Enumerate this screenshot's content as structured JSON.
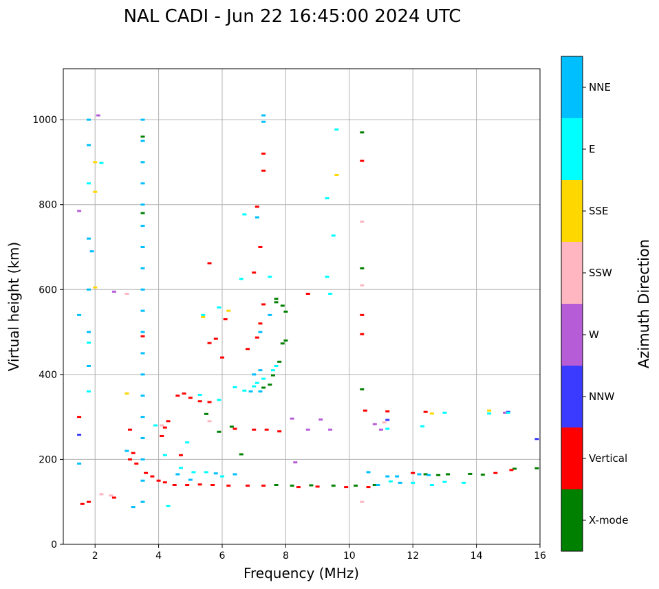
{
  "chart_data": {
    "type": "scatter",
    "title": "NAL CADI - Jun 22 16:45:00 2024 UTC",
    "xlabel": "Frequency (MHz)",
    "ylabel": "Virtual height (km)",
    "xlim": [
      1,
      16
    ],
    "ylim": [
      0,
      1120
    ],
    "xticks": [
      2,
      4,
      6,
      8,
      10,
      12,
      14,
      16
    ],
    "yticks": [
      0,
      200,
      400,
      600,
      800,
      1000
    ],
    "grid": true,
    "colorbar": {
      "label": "Azimuth Direction",
      "entries": [
        {
          "name": "X-mode",
          "color": "#008000"
        },
        {
          "name": "Vertical",
          "color": "#ff0000"
        },
        {
          "name": "NNW",
          "color": "#3b3bff"
        },
        {
          "name": "W",
          "color": "#b65cd6"
        },
        {
          "name": "SSW",
          "color": "#ffb6c1"
        },
        {
          "name": "SSE",
          "color": "#ffd700"
        },
        {
          "name": "E",
          "color": "#00ffff"
        },
        {
          "name": "NNE",
          "color": "#00bfff"
        }
      ]
    },
    "series": [
      {
        "name": "X-mode",
        "points": [
          [
            7.7,
            140
          ],
          [
            8.2,
            138
          ],
          [
            8.8,
            139
          ],
          [
            9.5,
            138
          ],
          [
            10.2,
            138
          ],
          [
            10.8,
            140
          ],
          [
            12.4,
            165
          ],
          [
            12.8,
            163
          ],
          [
            13.1,
            165
          ],
          [
            13.8,
            166
          ],
          [
            14.2,
            164
          ],
          [
            15.2,
            178
          ],
          [
            15.9,
            179
          ],
          [
            7.3,
            369
          ],
          [
            7.5,
            376
          ],
          [
            7.6,
            398
          ],
          [
            7.8,
            430
          ],
          [
            7.9,
            473
          ],
          [
            8.0,
            480
          ],
          [
            8.0,
            548
          ],
          [
            7.9,
            562
          ],
          [
            7.7,
            570
          ],
          [
            7.7,
            578
          ],
          [
            10.4,
            365
          ],
          [
            10.4,
            650
          ],
          [
            10.4,
            970
          ],
          [
            3.5,
            960
          ],
          [
            3.5,
            780
          ],
          [
            6.3,
            277
          ],
          [
            5.9,
            265
          ],
          [
            6.6,
            212
          ],
          [
            5.5,
            307
          ]
        ]
      },
      {
        "name": "Vertical",
        "points": [
          [
            3.1,
            200
          ],
          [
            3.2,
            215
          ],
          [
            3.3,
            190
          ],
          [
            3.6,
            168
          ],
          [
            3.8,
            160
          ],
          [
            4.0,
            150
          ],
          [
            4.2,
            146
          ],
          [
            4.5,
            140
          ],
          [
            4.9,
            140
          ],
          [
            5.3,
            141
          ],
          [
            5.7,
            140
          ],
          [
            6.2,
            138
          ],
          [
            6.8,
            138
          ],
          [
            7.3,
            138
          ],
          [
            8.4,
            135
          ],
          [
            9.0,
            136
          ],
          [
            9.9,
            135
          ],
          [
            10.6,
            135
          ],
          [
            12.0,
            168
          ],
          [
            14.6,
            168
          ],
          [
            15.1,
            175
          ],
          [
            4.1,
            255
          ],
          [
            4.2,
            275
          ],
          [
            4.3,
            290
          ],
          [
            4.6,
            350
          ],
          [
            4.8,
            355
          ],
          [
            5.0,
            345
          ],
          [
            5.3,
            337
          ],
          [
            5.6,
            335
          ],
          [
            6.4,
            272
          ],
          [
            7.0,
            270
          ],
          [
            7.4,
            270
          ],
          [
            7.8,
            266
          ],
          [
            10.5,
            315
          ],
          [
            11.2,
            313
          ],
          [
            12.4,
            312
          ],
          [
            7.1,
            487
          ],
          [
            7.2,
            520
          ],
          [
            7.3,
            565
          ],
          [
            7.0,
            640
          ],
          [
            7.2,
            700
          ],
          [
            7.3,
            880
          ],
          [
            7.3,
            920
          ],
          [
            10.4,
            903
          ],
          [
            10.4,
            540
          ],
          [
            10.4,
            495
          ],
          [
            5.8,
            484
          ],
          [
            5.6,
            474
          ],
          [
            6.0,
            440
          ],
          [
            6.8,
            460
          ],
          [
            3.1,
            270
          ],
          [
            2.6,
            110
          ],
          [
            1.6,
            95
          ],
          [
            1.5,
            300
          ],
          [
            1.8,
            100
          ],
          [
            8.7,
            590
          ],
          [
            4.7,
            210
          ],
          [
            5.6,
            662
          ],
          [
            7.1,
            795
          ],
          [
            6.1,
            530
          ],
          [
            3.5,
            490
          ]
        ]
      },
      {
        "name": "NNW",
        "points": [
          [
            1.5,
            258
          ],
          [
            15.0,
            312
          ],
          [
            15.9,
            248
          ],
          [
            11.2,
            293
          ]
        ]
      },
      {
        "name": "W",
        "points": [
          [
            8.2,
            296
          ],
          [
            8.7,
            270
          ],
          [
            9.1,
            294
          ],
          [
            9.4,
            270
          ],
          [
            11.0,
            270
          ],
          [
            14.9,
            310
          ],
          [
            2.1,
            1010
          ],
          [
            1.5,
            785
          ],
          [
            2.6,
            595
          ],
          [
            10.8,
            283
          ],
          [
            8.3,
            193
          ]
        ]
      },
      {
        "name": "SSW",
        "points": [
          [
            2.2,
            118
          ],
          [
            2.5,
            115
          ],
          [
            10.4,
            760
          ],
          [
            10.4,
            610
          ],
          [
            11.1,
            287
          ],
          [
            5.6,
            290
          ],
          [
            4.1,
            280
          ],
          [
            3.0,
            590
          ],
          [
            10.4,
            100
          ]
        ]
      },
      {
        "name": "SSE",
        "points": [
          [
            2.0,
            830
          ],
          [
            2.0,
            900
          ],
          [
            2.0,
            605
          ],
          [
            3.0,
            355
          ],
          [
            9.6,
            870
          ],
          [
            14.4,
            315
          ],
          [
            12.6,
            308
          ],
          [
            5.4,
            535
          ],
          [
            6.2,
            550
          ]
        ]
      },
      {
        "name": "E",
        "points": [
          [
            4.7,
            180
          ],
          [
            5.1,
            170
          ],
          [
            5.5,
            170
          ],
          [
            6.0,
            160
          ],
          [
            11.3,
            148
          ],
          [
            12.0,
            145
          ],
          [
            12.6,
            140
          ],
          [
            13.0,
            147
          ],
          [
            13.6,
            145
          ],
          [
            4.9,
            240
          ],
          [
            5.3,
            352
          ],
          [
            5.9,
            340
          ],
          [
            6.4,
            370
          ],
          [
            6.7,
            362
          ],
          [
            7.0,
            372
          ],
          [
            7.1,
            380
          ],
          [
            7.3,
            390
          ],
          [
            7.6,
            410
          ],
          [
            7.7,
            420
          ],
          [
            6.6,
            625
          ],
          [
            7.5,
            630
          ],
          [
            9.3,
            630
          ],
          [
            9.4,
            590
          ],
          [
            9.6,
            977
          ],
          [
            9.5,
            727
          ],
          [
            9.3,
            815
          ],
          [
            13.0,
            310
          ],
          [
            14.4,
            308
          ],
          [
            15.0,
            310
          ],
          [
            4.3,
            90
          ],
          [
            4.2,
            210
          ],
          [
            3.9,
            280
          ],
          [
            5.4,
            540
          ],
          [
            5.9,
            558
          ],
          [
            1.8,
            475
          ],
          [
            1.8,
            360
          ],
          [
            1.8,
            850
          ],
          [
            2.2,
            898
          ],
          [
            12.3,
            278
          ],
          [
            11.2,
            272
          ],
          [
            6.7,
            777
          ]
        ]
      },
      {
        "name": "NNE",
        "points": [
          [
            1.8,
            1000
          ],
          [
            1.8,
            940
          ],
          [
            1.8,
            720
          ],
          [
            1.8,
            600
          ],
          [
            1.8,
            500
          ],
          [
            1.8,
            420
          ],
          [
            1.5,
            540
          ],
          [
            1.5,
            190
          ],
          [
            1.9,
            690
          ],
          [
            3.2,
            88
          ],
          [
            4.6,
            165
          ],
          [
            5.0,
            152
          ],
          [
            5.8,
            167
          ],
          [
            6.4,
            165
          ],
          [
            6.9,
            360
          ],
          [
            7.2,
            360
          ],
          [
            7.0,
            400
          ],
          [
            7.2,
            410
          ],
          [
            7.3,
            995
          ],
          [
            7.3,
            1010
          ],
          [
            7.1,
            770
          ],
          [
            7.5,
            540
          ],
          [
            7.2,
            500
          ],
          [
            10.6,
            170
          ],
          [
            11.2,
            160
          ],
          [
            11.5,
            160
          ],
          [
            12.2,
            165
          ],
          [
            12.5,
            163
          ],
          [
            10.9,
            140
          ],
          [
            11.6,
            145
          ],
          [
            3.0,
            220
          ]
        ]
      },
      {
        "name": "NNE",
        "points": [
          [
            3.5,
            100
          ],
          [
            3.5,
            150
          ],
          [
            3.5,
            200
          ],
          [
            3.5,
            250
          ],
          [
            3.5,
            300
          ],
          [
            3.5,
            350
          ],
          [
            3.5,
            400
          ],
          [
            3.5,
            450
          ],
          [
            3.5,
            500
          ],
          [
            3.5,
            550
          ],
          [
            3.5,
            600
          ],
          [
            3.5,
            650
          ],
          [
            3.5,
            700
          ],
          [
            3.5,
            750
          ],
          [
            3.5,
            800
          ],
          [
            3.5,
            850
          ],
          [
            3.5,
            900
          ],
          [
            3.5,
            950
          ],
          [
            3.5,
            1000
          ]
        ]
      }
    ]
  }
}
